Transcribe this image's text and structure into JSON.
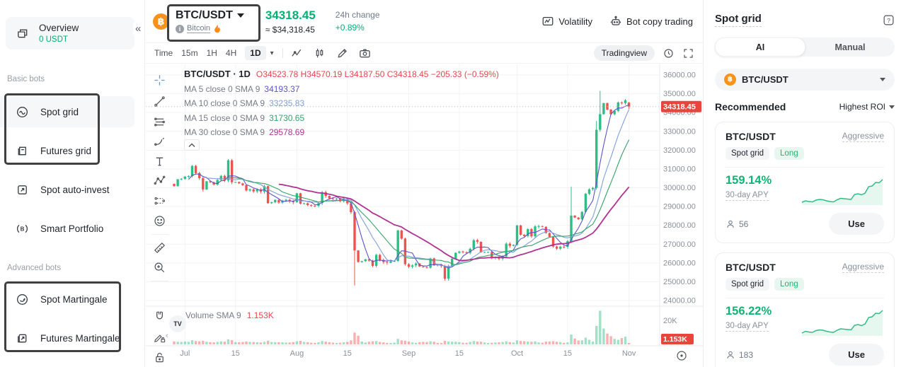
{
  "colors": {
    "accent_green": "#00b173",
    "candle_up": "#2ebd85",
    "candle_down": "#ef5350",
    "badge_red": "#e8453c",
    "legend_red": "#e0494f",
    "axis_text": "#8a8f99",
    "grid": "#f2f3f5"
  },
  "sidebar": {
    "collapse_icon": "«",
    "overview": {
      "label": "Overview",
      "balance": "0 USDT"
    },
    "sections": [
      {
        "label": "Basic bots",
        "items": [
          {
            "label": "Spot grid"
          },
          {
            "label": "Futures grid"
          },
          {
            "label": "Spot auto-invest"
          },
          {
            "label": "Smart Portfolio"
          }
        ]
      },
      {
        "label": "Advanced bots",
        "items": [
          {
            "label": "Spot Martingale"
          },
          {
            "label": "Futures Martingale"
          }
        ]
      }
    ]
  },
  "header": {
    "pair": "BTC/USDT",
    "coin": "Bitcoin",
    "price": "34318.45",
    "price_usd": "≈ $34,318.45",
    "change_label": "24h change",
    "change_value": "+0.89%",
    "volatility_label": "Volatility",
    "bot_copy_label": "Bot copy trading"
  },
  "toolbar": {
    "time_label": "Time",
    "intervals": [
      "15m",
      "1H",
      "4H"
    ],
    "active_interval": "1D",
    "tradingview_label": "Tradingview"
  },
  "chart": {
    "legend_title": "BTC/USDT · 1D",
    "ohlc": "O34523.78 H34570.19 L34187.50 C34318.45 −205.33 (−0.59%)",
    "ma_rows": [
      {
        "label": "MA 5 close 0 SMA 9",
        "value": "34193.37",
        "color": "#5b54c8"
      },
      {
        "label": "MA 10 close 0 SMA 9",
        "value": "33235.83",
        "color": "#7d9ed9"
      },
      {
        "label": "MA 15 close 0 SMA 9",
        "value": "31730.65",
        "color": "#37a16b"
      },
      {
        "label": "MA 30 close 0 SMA 9",
        "value": "29578.69",
        "color": "#b03394"
      }
    ],
    "price_badge": "34318.45",
    "volume_label": "Volume SMA 9",
    "volume_value": "1.153K",
    "volume_axis_label": "20K",
    "volume_badge": "1.153K",
    "watermark": "TV",
    "y_ticks": [
      "36000.00",
      "35000.00",
      "34000.00",
      "33000.00",
      "32000.00",
      "31000.00",
      "30000.00",
      "29000.00",
      "28000.00",
      "27000.00",
      "26000.00",
      "25000.00",
      "24000.00"
    ]
  },
  "chart_data": {
    "type": "candlestick",
    "interval": "1D",
    "ylim": [
      24000,
      36000
    ],
    "volume_ylim_k": [
      0,
      20
    ],
    "closes": [
      30086,
      30445,
      30477,
      30590,
      30620,
      31160,
      30778,
      30514,
      29909,
      30342,
      30292,
      30171,
      30415,
      30632,
      30386,
      31460,
      30294,
      30306,
      30233,
      30137,
      29856,
      29915,
      29804,
      29909,
      29795,
      30085,
      29179,
      29227,
      29354,
      29212,
      29316,
      29357,
      29278,
      29230,
      29705,
      29153,
      29174,
      29076,
      29046,
      29041,
      29180,
      29765,
      29567,
      29430,
      29398,
      29418,
      29283,
      29408,
      29170,
      28701,
      26664,
      26049,
      26096,
      26189,
      26124,
      25842,
      26431,
      26163,
      26047,
      26009,
      26089,
      26106,
      27727,
      27297,
      25932,
      25800,
      25869,
      25969,
      25812,
      25780,
      25748,
      26240,
      25905,
      25895,
      25832,
      25162,
      25833,
      26228,
      26539,
      26608,
      26568,
      26534,
      26754,
      27211,
      27125,
      26567,
      26579,
      26580,
      26253,
      26305,
      26217,
      26355,
      27025,
      26911,
      26962,
      27994,
      27500,
      27430,
      27800,
      27414,
      27946,
      27959,
      27922,
      27591,
      27391,
      26873,
      26757,
      26866,
      26860,
      27161,
      28518,
      28413,
      28328,
      28719,
      29682,
      29918,
      29993,
      33086,
      33914,
      34501,
      34156,
      33909,
      34089,
      34538,
      34502,
      34657,
      34318.45
    ],
    "volumes_k": [
      2.5,
      2.2,
      2.0,
      2.4,
      2.2,
      3.5,
      2.8,
      2.6,
      3.0,
      2.2,
      1.8,
      1.7,
      2.1,
      2.5,
      2.3,
      4.2,
      3.6,
      1.9,
      1.8,
      2.0,
      2.4,
      2.1,
      2.0,
      1.8,
      1.6,
      2.2,
      3.1,
      2.0,
      1.9,
      1.8,
      1.7,
      1.5,
      1.6,
      1.9,
      2.6,
      2.9,
      2.1,
      1.9,
      1.4,
      1.3,
      1.8,
      2.8,
      2.3,
      1.9,
      1.5,
      1.2,
      1.4,
      1.8,
      2.1,
      3.4,
      9.8,
      7.2,
      2.4,
      1.6,
      2.2,
      2.6,
      2.8,
      2.0,
      1.7,
      1.3,
      1.2,
      1.5,
      4.6,
      3.4,
      3.0,
      2.4,
      1.6,
      1.3,
      1.9,
      2.1,
      2.0,
      2.6,
      2.2,
      1.3,
      1.2,
      2.9,
      2.5,
      2.3,
      2.2,
      1.9,
      1.4,
      1.3,
      2.1,
      2.8,
      2.4,
      2.2,
      1.6,
      1.2,
      1.4,
      1.6,
      1.8,
      2.0,
      2.5,
      1.9,
      1.6,
      3.4,
      2.8,
      2.6,
      2.4,
      2.2,
      2.5,
      1.6,
      1.4,
      2.3,
      2.4,
      2.7,
      2.2,
      1.9,
      1.3,
      1.6,
      8.2,
      4.8,
      3.2,
      3.4,
      5.6,
      3.8,
      2.4,
      15.4,
      28.0,
      13.2,
      9.0,
      6.8,
      4.6,
      3.8,
      5.2,
      6.4,
      1.153
    ],
    "wick_overrides": {
      "50": {
        "low": 24800
      },
      "110": {
        "high": 30050
      },
      "117": {
        "high": 33550
      },
      "118": {
        "high": 35150
      }
    },
    "last_candle": {
      "open": 34523.78,
      "high": 34570.19,
      "low": 34187.5,
      "close": 34318.45
    },
    "current_price": 34318.45,
    "ma_periods": [
      5,
      10,
      15,
      30
    ],
    "ma_colors": [
      "#5b54c8",
      "#7d9ed9",
      "#37a16b",
      "#b03394"
    ],
    "x_ticks": [
      {
        "label": "Jul",
        "index": 3
      },
      {
        "label": "15",
        "index": 17
      },
      {
        "label": "Aug",
        "index": 34
      },
      {
        "label": "15",
        "index": 48
      },
      {
        "label": "Sep",
        "index": 65
      },
      {
        "label": "15",
        "index": 79
      },
      {
        "label": "Oct",
        "index": 95
      },
      {
        "label": "15",
        "index": 109
      },
      {
        "label": "Nov",
        "index": 126
      }
    ]
  },
  "panel": {
    "title": "Spot grid",
    "tabs": [
      "AI",
      "Manual"
    ],
    "active_tab": "AI",
    "pair": "BTC/USDT",
    "recommended_label": "Recommended",
    "sort_label": "Highest ROI",
    "cards": [
      {
        "pair": "BTC/USDT",
        "risk": "Aggressive",
        "tag1": "Spot grid",
        "tag2": "Long",
        "apy": "159.14%",
        "apy_label": "30-day APY",
        "users": "56",
        "use_label": "Use",
        "spark": [
          2.2,
          2.6,
          2.4,
          2.3,
          2.8,
          3.0,
          2.9,
          2.6,
          2.4,
          2.3,
          2.9,
          3.3,
          3.2,
          3.1,
          3.0,
          4.4,
          4.6,
          4.3,
          4.8,
          6.6,
          6.8,
          7.8,
          7.7,
          8.6
        ]
      },
      {
        "pair": "BTC/USDT",
        "risk": "Aggressive",
        "tag1": "Spot grid",
        "tag2": "Long",
        "apy": "156.22%",
        "apy_label": "30-day APY",
        "users": "183",
        "use_label": "Use",
        "spark": [
          2.0,
          2.5,
          2.3,
          2.2,
          2.7,
          2.9,
          2.8,
          2.5,
          2.3,
          2.2,
          2.8,
          3.2,
          3.1,
          3.0,
          2.9,
          4.2,
          4.4,
          4.1,
          4.6,
          6.4,
          6.6,
          7.6,
          7.5,
          8.4
        ]
      }
    ]
  }
}
